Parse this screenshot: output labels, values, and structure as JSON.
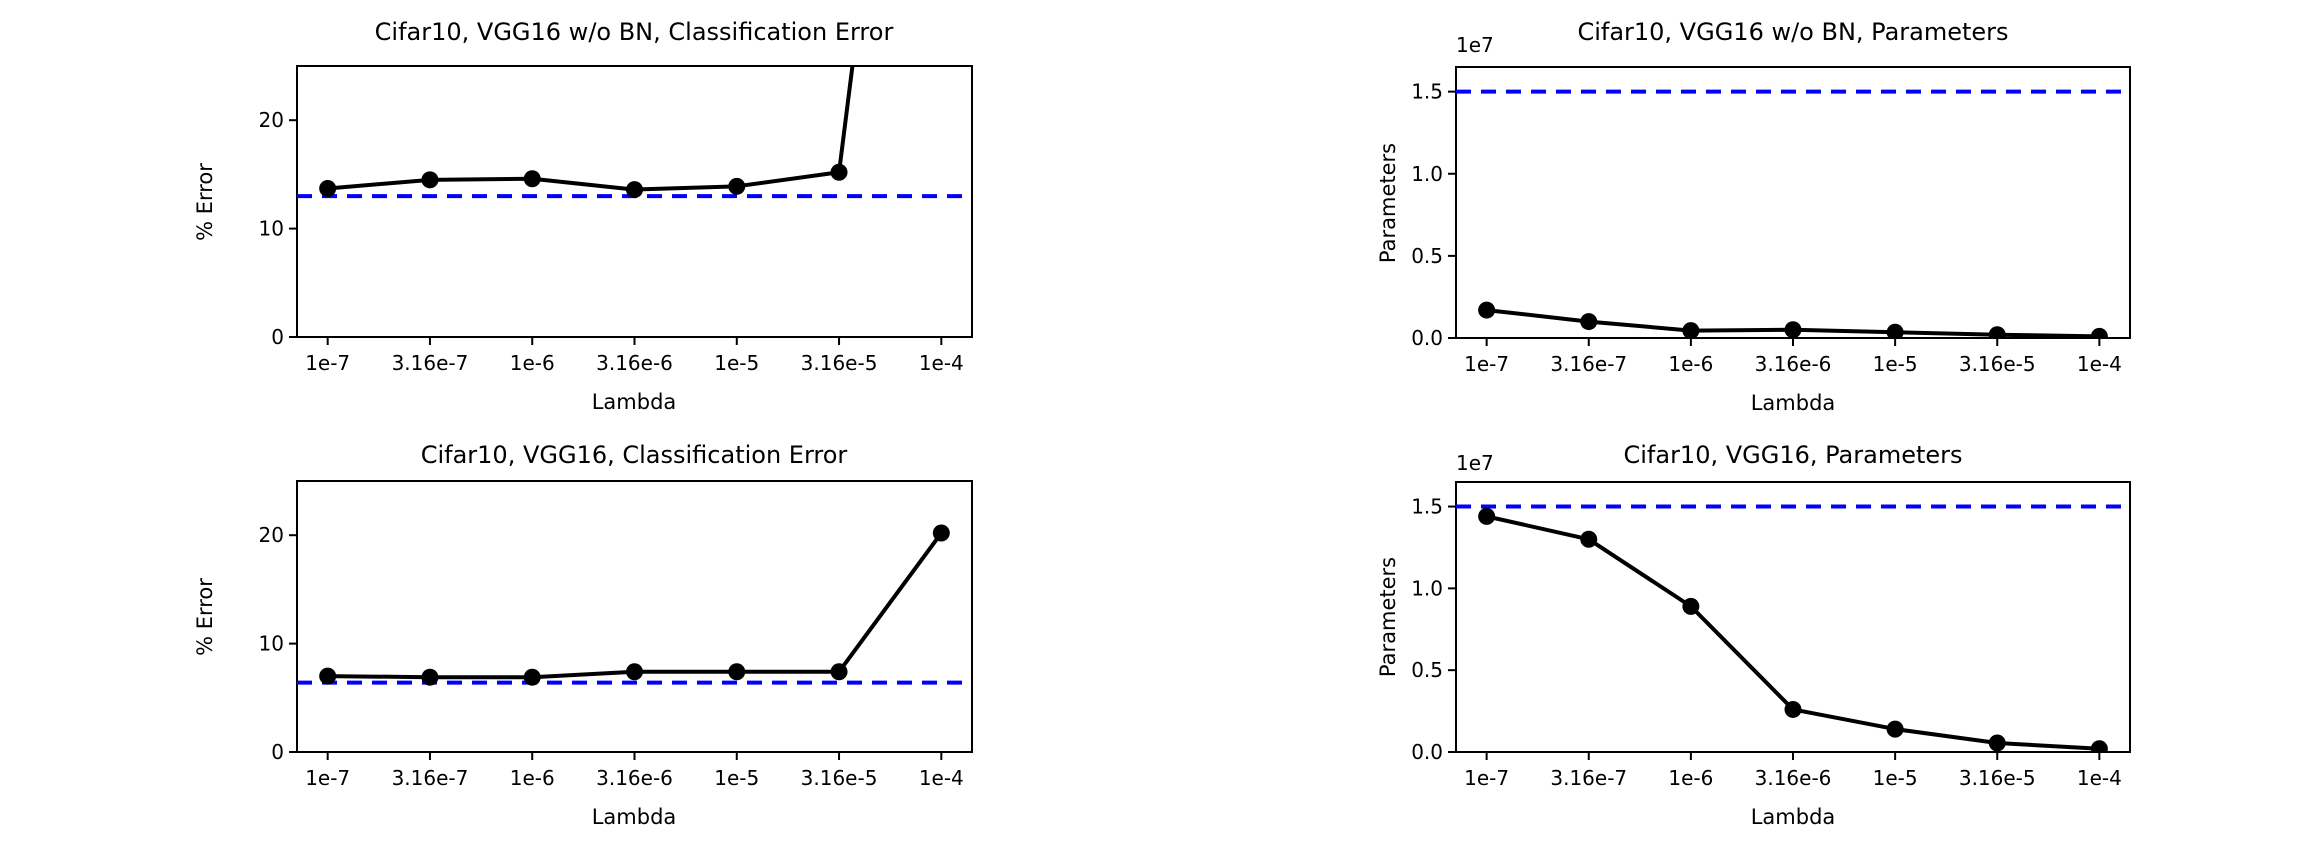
{
  "colors": {
    "background": "#ffffff",
    "data_line": "#000000",
    "marker": "#000000",
    "reference_dashed_line": "#0000ff",
    "axis": "#000000",
    "text": "#000000"
  },
  "x_axis_shared": {
    "label": "Lambda",
    "tick_labels": [
      "1e-7",
      "3.16e-7",
      "1e-6",
      "3.16e-6",
      "1e-5",
      "3.16e-5",
      "1e-4"
    ]
  },
  "chart_data": [
    {
      "id": "cifar10-vgg16-wo-bn-classification-error",
      "type": "line",
      "title": "Cifar10, VGG16 w/o BN, Classification Error",
      "xlabel": "Lambda",
      "ylabel": "% Error",
      "categories": [
        "1e-7",
        "3.16e-7",
        "1e-6",
        "3.16e-6",
        "1e-5",
        "3.16e-5",
        "1e-4"
      ],
      "values": [
        13.7,
        14.5,
        14.6,
        13.6,
        13.9,
        15.2,
        90
      ],
      "last_point_offscale_above_top": true,
      "reference_dashed_y": 13.0,
      "ylim": [
        0,
        25
      ],
      "y_ticks": [
        0,
        10,
        20
      ],
      "y_tick_labels": [
        "0",
        "10",
        "20"
      ],
      "offset_text": null,
      "grid": false,
      "legend": null,
      "line_style": "solid-with-circle-markers",
      "reference_line_style": "dashed"
    },
    {
      "id": "cifar10-vgg16-wo-bn-parameters",
      "type": "line",
      "title": "Cifar10, VGG16 w/o BN, Parameters",
      "xlabel": "Lambda",
      "ylabel": "Parameters",
      "categories": [
        "1e-7",
        "3.16e-7",
        "1e-6",
        "3.16e-6",
        "1e-5",
        "3.16e-5",
        "1e-4"
      ],
      "values": [
        0.17,
        0.1,
        0.045,
        0.05,
        0.035,
        0.02,
        0.01
      ],
      "values_unit_multiplier": "1e7",
      "last_point_offscale_above_top": false,
      "reference_dashed_y": 1.5,
      "ylim": [
        0,
        1.65
      ],
      "y_ticks": [
        0,
        0.5,
        1.0,
        1.5
      ],
      "y_tick_labels": [
        "0.0",
        "0.5",
        "1.0",
        "1.5"
      ],
      "offset_text": "1e7",
      "grid": false,
      "legend": null,
      "line_style": "solid-with-circle-markers",
      "reference_line_style": "dashed"
    },
    {
      "id": "cifar10-vgg16-classification-error",
      "type": "line",
      "title": "Cifar10, VGG16, Classification Error",
      "xlabel": "Lambda",
      "ylabel": "% Error",
      "categories": [
        "1e-7",
        "3.16e-7",
        "1e-6",
        "3.16e-6",
        "1e-5",
        "3.16e-5",
        "1e-4"
      ],
      "values": [
        7.0,
        6.9,
        6.9,
        7.4,
        7.4,
        7.4,
        20.2
      ],
      "last_point_offscale_above_top": false,
      "reference_dashed_y": 6.4,
      "ylim": [
        0,
        25
      ],
      "y_ticks": [
        0,
        10,
        20
      ],
      "y_tick_labels": [
        "0",
        "10",
        "20"
      ],
      "offset_text": null,
      "grid": false,
      "legend": null,
      "line_style": "solid-with-circle-markers",
      "reference_line_style": "dashed"
    },
    {
      "id": "cifar10-vgg16-parameters",
      "type": "line",
      "title": "Cifar10, VGG16, Parameters",
      "xlabel": "Lambda",
      "ylabel": "Parameters",
      "categories": [
        "1e-7",
        "3.16e-7",
        "1e-6",
        "3.16e-6",
        "1e-5",
        "3.16e-5",
        "1e-4"
      ],
      "values": [
        1.44,
        1.3,
        0.89,
        0.26,
        0.14,
        0.055,
        0.02
      ],
      "values_unit_multiplier": "1e7",
      "last_point_offscale_above_top": false,
      "reference_dashed_y": 1.5,
      "ylim": [
        0,
        1.65
      ],
      "y_ticks": [
        0,
        0.5,
        1.0,
        1.5
      ],
      "y_tick_labels": [
        "0.0",
        "0.5",
        "1.0",
        "1.5"
      ],
      "offset_text": "1e7",
      "grid": false,
      "legend": null,
      "line_style": "solid-with-circle-markers",
      "reference_line_style": "dashed"
    }
  ]
}
